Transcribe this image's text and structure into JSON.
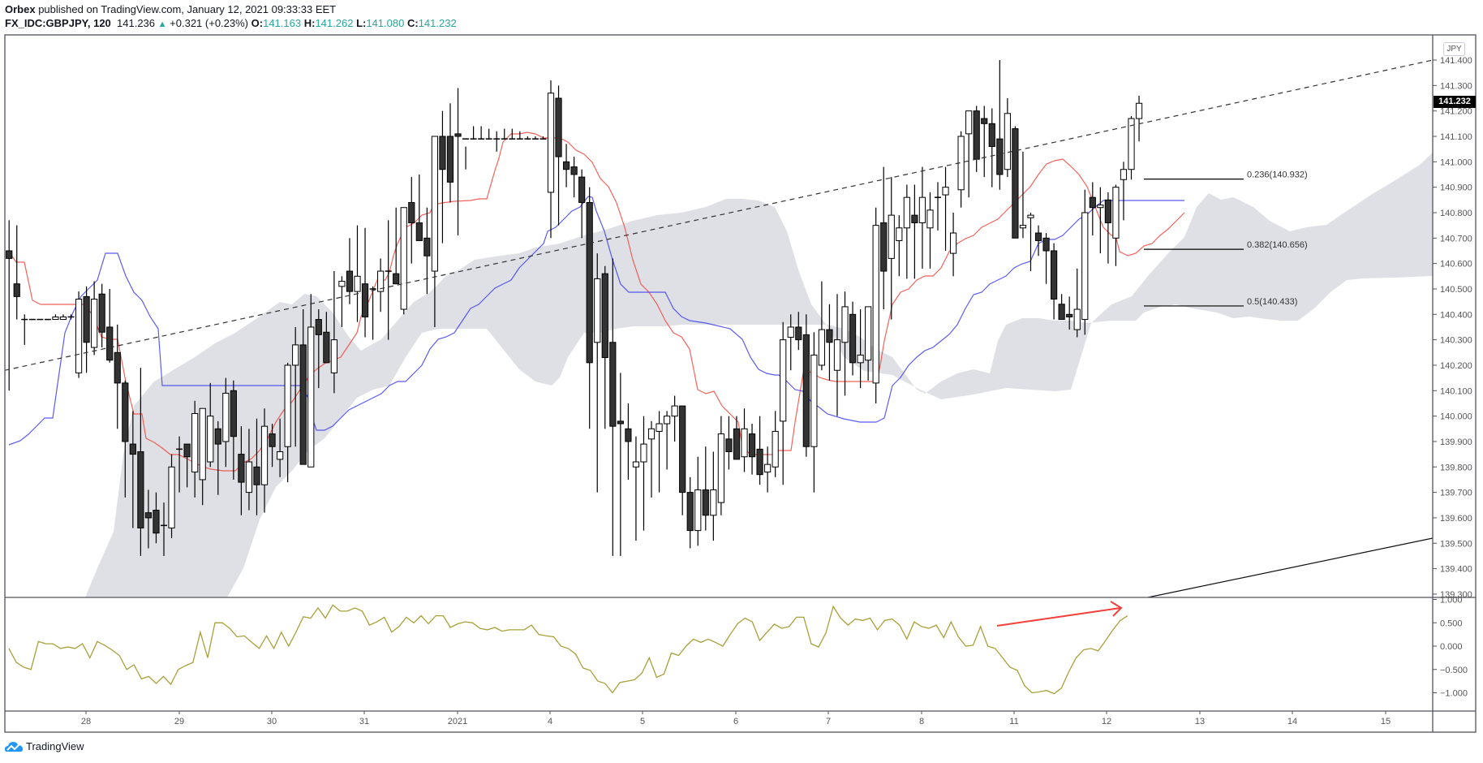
{
  "header": {
    "publisher": "Orbex",
    "published_text": "published on TradingView.com, January 12, 2021 09:33:33 EET",
    "symbol": "FX_IDC:GBPJPY, 120",
    "last": "141.236",
    "change": "+0.321 (+0.23%)",
    "open_label": "O:",
    "open": "141.163",
    "high_label": "H:",
    "high": "141.262",
    "low_label": "L:",
    "low": "141.080",
    "close_label": "C:",
    "close": "141.232"
  },
  "price_axis": {
    "currency_badge": "JPY",
    "last_price_tag": "141.232",
    "ticks": [
      "141.400",
      "141.300",
      "141.200",
      "141.100",
      "141.000",
      "140.900",
      "140.800",
      "140.700",
      "140.600",
      "140.500",
      "140.400",
      "140.300",
      "140.200",
      "140.100",
      "140.000",
      "139.900",
      "139.800",
      "139.700",
      "139.600",
      "139.500",
      "139.400",
      "139.300"
    ]
  },
  "osc_axis": {
    "ticks": [
      "1.000",
      "0.500",
      "0.000",
      "−0.500",
      "−1.000"
    ]
  },
  "time_axis": {
    "ticks": [
      "28",
      "29",
      "30",
      "31",
      "2021",
      "4",
      "5",
      "6",
      "7",
      "8",
      "11",
      "12",
      "13",
      "14",
      "15"
    ]
  },
  "fib_levels": [
    {
      "label": "0.236(140.932)",
      "value": 140.932
    },
    {
      "label": "0.382(140.656)",
      "value": 140.656
    },
    {
      "label": "0.5(140.433)",
      "value": 140.433
    }
  ],
  "footer": {
    "brand": "TradingView"
  },
  "colors": {
    "up_candle": "#ffffff",
    "down_candle": "#333333",
    "tenkan": "#f0483e",
    "kijun": "#3f3ff0",
    "cloud": "#dfe0e5",
    "oscillator": "#a8a03a",
    "arrow": "#f2403a",
    "change_green": "#26a69a"
  },
  "chart_data": {
    "type": "candlestick",
    "title": "FX_IDC:GBPJPY, 120",
    "ylabel": "JPY",
    "ylim": [
      139.28,
      141.46
    ],
    "x_ticks": [
      "28",
      "29",
      "30",
      "31",
      "2021",
      "4",
      "5",
      "6",
      "7",
      "8",
      "11",
      "12",
      "13",
      "14",
      "15"
    ],
    "indicators": [
      "Ichimoku Cloud (Tenkan red, Kijun blue, Kumo grey)",
      "Oscillator (-1 to 1)",
      "Trendline (dashed)",
      "Fibonacci retracement 0.236/0.382/0.5"
    ],
    "candles": [
      [
        140.65,
        140.77,
        140.1,
        140.62
      ],
      [
        140.52,
        140.75,
        140.38,
        140.47
      ],
      [
        140.38,
        140.4,
        140.28,
        140.38
      ],
      [
        140.38,
        140.38,
        140.38,
        140.38
      ],
      [
        140.38,
        140.38,
        140.38,
        140.38
      ],
      [
        140.38,
        140.38,
        140.38,
        140.38
      ],
      [
        140.38,
        140.4,
        140.38,
        140.39
      ],
      [
        140.38,
        140.4,
        140.38,
        140.39
      ],
      [
        140.39,
        140.4,
        140.38,
        140.39
      ],
      [
        140.17,
        140.49,
        140.15,
        140.46
      ],
      [
        140.47,
        140.51,
        140.17,
        140.29
      ],
      [
        140.27,
        140.53,
        140.24,
        140.46
      ],
      [
        140.48,
        140.52,
        140.27,
        140.33
      ],
      [
        140.35,
        140.5,
        140.21,
        140.22
      ],
      [
        140.25,
        140.36,
        139.95,
        140.13
      ],
      [
        140.13,
        140.14,
        139.68,
        139.9
      ],
      [
        139.89,
        140.02,
        139.56,
        139.85
      ],
      [
        139.86,
        140.19,
        139.45,
        139.56
      ],
      [
        139.62,
        139.71,
        139.48,
        139.6
      ],
      [
        139.63,
        139.7,
        139.5,
        139.54
      ],
      [
        139.57,
        139.66,
        139.45,
        139.57
      ],
      [
        139.56,
        139.85,
        139.52,
        139.8
      ],
      [
        139.87,
        139.92,
        139.7,
        139.87
      ],
      [
        139.89,
        139.89,
        139.72,
        139.84
      ],
      [
        139.78,
        140.06,
        139.68,
        140.01
      ],
      [
        139.75,
        140.02,
        139.65,
        140.03
      ],
      [
        139.82,
        140.13,
        139.8,
        140.0
      ],
      [
        139.95,
        139.98,
        139.69,
        139.89
      ],
      [
        139.9,
        140.15,
        139.8,
        140.09
      ],
      [
        140.1,
        140.14,
        139.75,
        139.92
      ],
      [
        139.85,
        139.96,
        139.61,
        139.74
      ],
      [
        139.7,
        139.95,
        139.63,
        139.82
      ],
      [
        139.8,
        139.99,
        139.61,
        139.73
      ],
      [
        139.73,
        140.03,
        139.62,
        139.96
      ],
      [
        139.93,
        139.97,
        139.8,
        139.88
      ],
      [
        139.83,
        139.99,
        139.76,
        139.86
      ],
      [
        139.88,
        140.21,
        139.74,
        140.2
      ],
      [
        140.2,
        140.35,
        139.88,
        140.28
      ],
      [
        140.28,
        140.42,
        139.89,
        139.81
      ],
      [
        139.8,
        140.48,
        139.83,
        140.35
      ],
      [
        140.38,
        140.42,
        140.11,
        140.32
      ],
      [
        140.33,
        140.41,
        140.27,
        140.21
      ],
      [
        140.17,
        140.57,
        140.09,
        140.3
      ],
      [
        140.51,
        140.55,
        140.35,
        140.53
      ],
      [
        140.57,
        140.7,
        140.44,
        140.49
      ],
      [
        140.49,
        140.75,
        140.37,
        140.55
      ],
      [
        140.52,
        140.74,
        140.31,
        140.39
      ],
      [
        140.5,
        140.51,
        140.3,
        140.5
      ],
      [
        140.49,
        140.62,
        140.41,
        140.57
      ],
      [
        140.57,
        140.77,
        140.3,
        140.57
      ],
      [
        140.56,
        140.82,
        140.52,
        140.52
      ],
      [
        140.42,
        140.68,
        140.4,
        140.82
      ],
      [
        140.84,
        140.94,
        140.6,
        140.76
      ],
      [
        140.76,
        140.95,
        140.72,
        140.69
      ],
      [
        140.7,
        140.82,
        140.48,
        140.63
      ],
      [
        140.57,
        141.0,
        140.35,
        141.1
      ],
      [
        141.1,
        141.2,
        140.68,
        140.97
      ],
      [
        141.1,
        141.23,
        140.84,
        140.92
      ],
      [
        141.11,
        141.29,
        140.71,
        141.1
      ],
      [
        141.09,
        141.06,
        140.97,
        141.09
      ],
      [
        141.09,
        141.14,
        141.09,
        141.09
      ],
      [
        141.09,
        141.14,
        141.09,
        141.09
      ],
      [
        141.09,
        141.13,
        141.09,
        141.09
      ],
      [
        141.09,
        141.12,
        141.04,
        141.09
      ],
      [
        141.09,
        141.13,
        141.09,
        141.09
      ],
      [
        141.09,
        141.13,
        141.09,
        141.09
      ],
      [
        141.09,
        141.12,
        141.09,
        141.09
      ],
      [
        141.09,
        141.1,
        141.09,
        141.09
      ],
      [
        141.09,
        141.1,
        141.09,
        141.09
      ],
      [
        141.09,
        141.1,
        141.09,
        141.09
      ],
      [
        140.88,
        141.32,
        140.7,
        141.27
      ],
      [
        141.25,
        141.3,
        140.75,
        141.02
      ],
      [
        141.0,
        141.07,
        140.9,
        140.97
      ],
      [
        140.98,
        141.02,
        140.86,
        140.95
      ],
      [
        140.94,
        140.97,
        140.7,
        140.84
      ],
      [
        140.84,
        140.9,
        139.95,
        140.21
      ],
      [
        140.29,
        140.64,
        139.7,
        140.54
      ],
      [
        140.56,
        140.59,
        139.95,
        140.23
      ],
      [
        140.29,
        140.62,
        139.45,
        139.96
      ],
      [
        139.98,
        140.17,
        139.45,
        139.97
      ],
      [
        139.95,
        140.05,
        139.75,
        139.9
      ],
      [
        139.8,
        139.92,
        139.51,
        139.82
      ],
      [
        139.82,
        140.0,
        139.55,
        139.89
      ],
      [
        139.91,
        139.98,
        139.68,
        139.95
      ],
      [
        139.94,
        140.02,
        139.7,
        139.97
      ],
      [
        139.97,
        140.02,
        139.79,
        140.0
      ],
      [
        140.0,
        140.08,
        139.9,
        140.04
      ],
      [
        140.04,
        140.04,
        139.61,
        139.7
      ],
      [
        139.7,
        139.76,
        139.48,
        139.55
      ],
      [
        139.55,
        139.84,
        139.49,
        139.71
      ],
      [
        139.71,
        139.88,
        139.55,
        139.61
      ],
      [
        139.61,
        139.86,
        139.51,
        139.71
      ],
      [
        139.66,
        140.0,
        139.61,
        139.93
      ],
      [
        139.91,
        140.0,
        139.79,
        139.86
      ],
      [
        139.95,
        140.0,
        139.88,
        139.83
      ],
      [
        139.84,
        140.03,
        139.78,
        139.95
      ],
      [
        139.93,
        139.97,
        139.77,
        139.84
      ],
      [
        139.87,
        140.0,
        139.73,
        139.77
      ],
      [
        139.78,
        139.88,
        139.7,
        139.81
      ],
      [
        139.8,
        140.02,
        139.76,
        139.94
      ],
      [
        139.98,
        140.37,
        139.73,
        140.3
      ],
      [
        140.31,
        140.4,
        140.18,
        140.35
      ],
      [
        140.35,
        140.41,
        140.26,
        140.3
      ],
      [
        140.32,
        140.4,
        139.84,
        139.88
      ],
      [
        139.88,
        140.33,
        139.7,
        140.24
      ],
      [
        140.2,
        140.53,
        140.18,
        140.34
      ],
      [
        140.34,
        140.44,
        140.14,
        140.29
      ],
      [
        140.18,
        140.48,
        140.0,
        140.3
      ],
      [
        140.29,
        140.49,
        140.08,
        140.43
      ],
      [
        140.4,
        140.45,
        140.16,
        140.21
      ],
      [
        140.21,
        140.42,
        140.11,
        140.24
      ],
      [
        140.22,
        140.43,
        140.14,
        140.43
      ],
      [
        140.13,
        140.82,
        140.05,
        140.75
      ],
      [
        140.76,
        140.98,
        140.42,
        140.57
      ],
      [
        140.62,
        140.94,
        140.38,
        140.79
      ],
      [
        140.69,
        140.79,
        140.55,
        140.74
      ],
      [
        140.74,
        140.91,
        140.54,
        140.86
      ],
      [
        140.79,
        140.91,
        140.54,
        140.76
      ],
      [
        140.76,
        140.98,
        140.58,
        140.86
      ],
      [
        140.74,
        140.88,
        140.58,
        140.81
      ],
      [
        140.86,
        140.92,
        140.73,
        140.86
      ],
      [
        140.87,
        140.98,
        140.65,
        140.9
      ],
      [
        140.64,
        140.8,
        140.55,
        140.72
      ],
      [
        140.89,
        141.12,
        140.82,
        141.1
      ],
      [
        141.11,
        141.14,
        140.86,
        141.2
      ],
      [
        141.2,
        141.22,
        140.96,
        141.01
      ],
      [
        141.17,
        141.22,
        140.94,
        141.15
      ],
      [
        141.15,
        141.21,
        140.9,
        141.06
      ],
      [
        141.09,
        141.4,
        140.89,
        140.95
      ],
      [
        140.97,
        141.25,
        140.94,
        141.19
      ],
      [
        141.13,
        141.14,
        140.84,
        140.7
      ],
      [
        140.74,
        141.04,
        140.7,
        140.75
      ],
      [
        140.78,
        140.8,
        140.57,
        140.79
      ],
      [
        140.72,
        140.75,
        140.63,
        140.69
      ],
      [
        140.7,
        140.72,
        140.52,
        140.65
      ],
      [
        140.65,
        140.68,
        140.38,
        140.46
      ],
      [
        140.44,
        140.48,
        140.4,
        140.38
      ],
      [
        140.4,
        140.47,
        140.34,
        140.39
      ],
      [
        140.34,
        140.58,
        140.31,
        140.42
      ],
      [
        140.38,
        140.89,
        140.32,
        140.8
      ],
      [
        140.86,
        140.92,
        140.71,
        140.82
      ],
      [
        140.82,
        140.9,
        140.64,
        140.83
      ],
      [
        140.85,
        140.88,
        140.6,
        140.76
      ],
      [
        140.7,
        140.91,
        140.59,
        140.9
      ],
      [
        140.93,
        141.0,
        140.77,
        140.97
      ],
      [
        140.97,
        141.18,
        140.93,
        141.17
      ],
      [
        141.17,
        141.26,
        141.08,
        141.23
      ]
    ],
    "oscillator": {
      "name": "Oscillator",
      "ylim": [
        -1.2,
        1.1
      ],
      "values": [
        -0.05,
        -0.35,
        -0.45,
        -0.5,
        0.1,
        0.05,
        0.05,
        -0.05,
        -0.02,
        -0.05,
        0.05,
        -0.25,
        0.1,
        0.02,
        -0.08,
        -0.2,
        -0.5,
        -0.4,
        -0.7,
        -0.65,
        -0.8,
        -0.65,
        -0.82,
        -0.5,
        -0.42,
        -0.35,
        0.3,
        -0.25,
        0.5,
        0.5,
        0.38,
        0.2,
        0.22,
        0.08,
        -0.05,
        0.22,
        -0.05,
        0.3,
        0.0,
        0.3,
        0.63,
        0.6,
        0.82,
        0.6,
        0.88,
        0.75,
        0.75,
        0.82,
        0.75,
        0.45,
        0.52,
        0.62,
        0.3,
        0.42,
        0.62,
        0.5,
        0.65,
        0.48,
        0.65,
        0.65,
        0.4,
        0.48,
        0.52,
        0.5,
        0.38,
        0.35,
        0.4,
        0.32,
        0.35,
        0.35,
        0.35,
        0.45,
        0.25,
        0.22,
        0.2,
        0.0,
        -0.05,
        -0.17,
        -0.47,
        -0.52,
        -0.75,
        -0.8,
        -1.0,
        -0.78,
        -0.75,
        -0.72,
        -0.58,
        -0.25,
        -0.67,
        -0.6,
        -0.15,
        -0.2,
        0.0,
        0.15,
        0.08,
        0.15,
        0.08,
        0.0,
        0.25,
        0.48,
        0.6,
        0.52,
        0.12,
        0.3,
        0.47,
        0.38,
        0.42,
        0.62,
        0.62,
        0.05,
        -0.02,
        0.28,
        0.85,
        0.6,
        0.45,
        0.58,
        0.55,
        0.6,
        0.35,
        0.55,
        0.58,
        0.45,
        0.15,
        0.52,
        0.42,
        0.38,
        0.45,
        0.18,
        0.52,
        0.2,
        0.0,
        0.02,
        0.42,
        0.0,
        -0.05,
        -0.25,
        -0.45,
        -0.52,
        -0.85,
        -1.0,
        -0.98,
        -0.95,
        -1.02,
        -0.9,
        -0.55,
        -0.25,
        -0.08,
        -0.05,
        -0.1,
        0.12,
        0.35,
        0.55,
        0.65
      ]
    },
    "trendline_dashed": {
      "from": [
        0,
        140.18
      ],
      "to": [
        1766,
        141.4
      ]
    },
    "annotations": [
      "Red arrow on oscillator indicating rising momentum",
      "Solid trendline in lower right"
    ]
  }
}
